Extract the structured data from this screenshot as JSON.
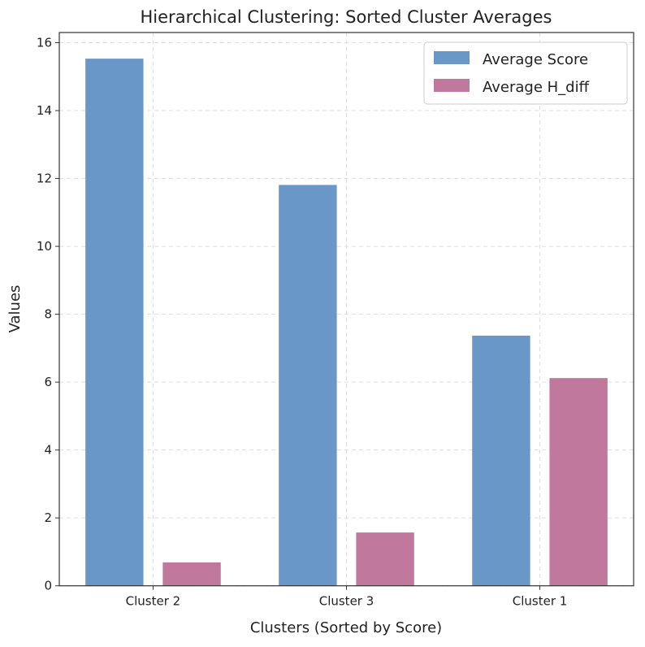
{
  "chart_data": {
    "type": "bar",
    "title": "Hierarchical Clustering: Sorted Cluster Averages",
    "xlabel": "Clusters (Sorted by Score)",
    "ylabel": "Values",
    "categories": [
      "Cluster 2",
      "Cluster 3",
      "Cluster 1"
    ],
    "series": [
      {
        "name": "Average Score",
        "color": "#6897c8",
        "values": [
          15.53,
          11.81,
          7.37
        ]
      },
      {
        "name": "Average H_diff",
        "color": "#c0799d",
        "values": [
          0.69,
          1.57,
          6.12
        ]
      }
    ],
    "ylim": [
      0,
      16.3
    ],
    "yticks": [
      0,
      2,
      4,
      6,
      8,
      10,
      12,
      14,
      16
    ],
    "grid": true,
    "legend": "top-right"
  }
}
